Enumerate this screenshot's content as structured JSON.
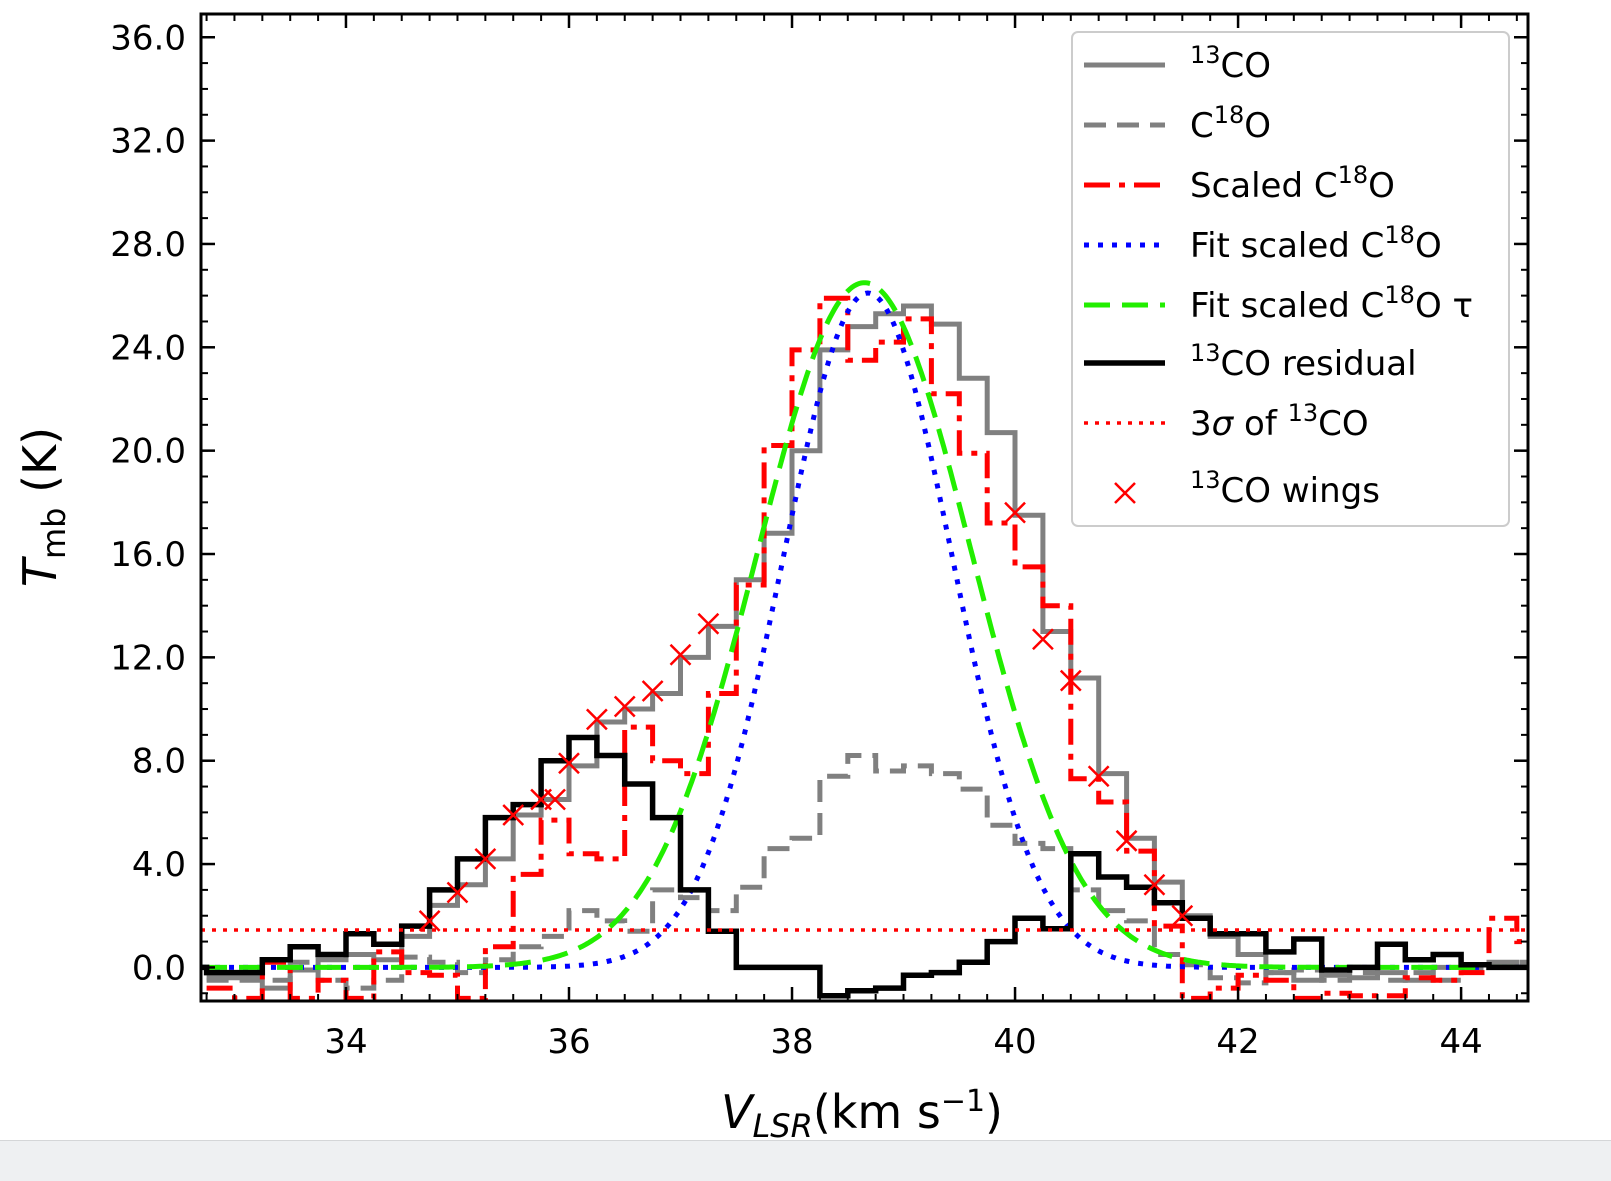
{
  "chart_data": {
    "type": "line",
    "xlabel": {
      "main": "V",
      "sub": "LSR",
      "unit": "(km s",
      "sup": "−1",
      "close": ")"
    },
    "ylabel": {
      "main": "T",
      "sub": "mb",
      "unit": " (K)"
    },
    "xlim": [
      32.7,
      44.6
    ],
    "ylim": [
      -1.3,
      36.9
    ],
    "xticks": [
      34,
      36,
      38,
      40,
      42,
      44
    ],
    "xtick_labels": [
      "34",
      "36",
      "38",
      "40",
      "42",
      "44"
    ],
    "yticks": [
      0,
      4,
      8,
      12,
      16,
      20,
      24,
      28,
      32,
      36
    ],
    "ytick_labels": [
      "0.0",
      "4.0",
      "8.0",
      "12.0",
      "16.0",
      "20.0",
      "24.0",
      "28.0",
      "32.0",
      "36.0"
    ],
    "grid": false,
    "legend_position": "top-right",
    "colors": {
      "gray": "#808080",
      "red": "#ff0000",
      "blue": "#0000ff",
      "green": "#22ee00",
      "black": "#000000"
    },
    "step_x": [
      32.75,
      33.0,
      33.25,
      33.5,
      33.75,
      34.0,
      34.25,
      34.5,
      34.75,
      35.0,
      35.25,
      35.5,
      35.75,
      36.0,
      36.25,
      36.5,
      36.75,
      37.0,
      37.25,
      37.5,
      37.75,
      38.0,
      38.25,
      38.5,
      38.75,
      39.0,
      39.25,
      39.5,
      39.75,
      40.0,
      40.25,
      40.5,
      40.75,
      41.0,
      41.25,
      41.5,
      41.75,
      42.0,
      42.25,
      42.5,
      42.75,
      43.0,
      43.25,
      43.5,
      43.75,
      44.0,
      44.25,
      44.5
    ],
    "series": [
      {
        "key": "co13",
        "name": "13CO",
        "style": "step-solid",
        "values": [
          -0.4,
          -0.4,
          -0.8,
          -0.1,
          0.3,
          0.5,
          0.3,
          1.2,
          2.4,
          3.2,
          4.2,
          5.9,
          6.5,
          7.8,
          9.5,
          10.0,
          10.6,
          12.0,
          13.2,
          15.0,
          16.8,
          20.0,
          23.9,
          24.8,
          25.3,
          25.6,
          24.9,
          22.8,
          20.7,
          17.5,
          13.0,
          11.2,
          7.5,
          5.0,
          3.3,
          2.0,
          1.2,
          0.5,
          -0.2,
          -0.5,
          -0.3,
          -0.4,
          -0.2,
          -0.5,
          0.0,
          0.1,
          0.2,
          0.0
        ]
      },
      {
        "key": "c18o",
        "name": "C18O",
        "style": "step-dash",
        "values": [
          -0.5,
          -0.5,
          -0.5,
          0.2,
          -0.5,
          -0.8,
          -0.5,
          0.4,
          0.2,
          -0.2,
          0.3,
          0.8,
          1.2,
          2.2,
          1.8,
          1.4,
          3.0,
          2.7,
          2.2,
          3.1,
          4.6,
          5.0,
          7.4,
          8.2,
          7.6,
          7.8,
          7.5,
          6.9,
          5.5,
          4.8,
          4.6,
          3.0,
          2.2,
          1.8,
          0.5,
          0.1,
          -0.4,
          -0.6,
          -0.2,
          -0.1,
          -0.5,
          -0.2,
          -0.5,
          -0.2,
          -0.5,
          -0.1,
          0.0,
          0.2
        ]
      },
      {
        "key": "scaled",
        "name": "Scaled C18O",
        "style": "step-dashdot",
        "values": [
          -0.8,
          -1.2,
          0.2,
          -1.2,
          -0.5,
          -1.2,
          0.6,
          -0.2,
          -0.3,
          -1.2,
          0.8,
          3.6,
          5.7,
          4.4,
          4.2,
          9.3,
          8.0,
          7.5,
          10.6,
          14.8,
          20.2,
          23.9,
          25.9,
          23.5,
          24.2,
          25.1,
          22.2,
          19.9,
          17.2,
          15.5,
          14.0,
          7.3,
          6.4,
          4.5,
          1.6,
          -1.2,
          -0.8,
          -0.3,
          -0.5,
          -1.2,
          -1.0,
          -1.1,
          -1.1,
          -0.4,
          -0.5,
          -0.2,
          1.9,
          1.0
        ]
      }
    ],
    "residual_x": [
      32.7,
      32.75,
      33.0,
      33.25,
      33.5,
      33.75,
      34.0,
      34.25,
      34.5,
      34.75,
      35.0,
      35.25,
      35.5,
      35.75,
      36.0,
      36.25,
      36.5,
      36.75,
      37.0,
      37.25,
      37.5,
      38.25,
      38.5,
      38.75,
      39.0,
      39.25,
      39.5,
      39.75,
      40.0,
      40.25,
      40.5,
      40.75,
      41.0,
      41.25,
      41.5,
      41.75,
      42.0,
      42.25,
      42.5,
      42.75,
      43.0,
      43.25,
      43.5,
      43.75,
      44.0,
      44.25,
      44.5
    ],
    "residual_values": [
      0.0,
      -0.2,
      -0.2,
      0.3,
      0.8,
      0.5,
      1.3,
      0.9,
      1.6,
      3.0,
      4.2,
      5.8,
      6.3,
      8.0,
      8.9,
      8.2,
      7.1,
      5.8,
      3.0,
      1.4,
      0.0,
      -1.1,
      -0.9,
      -0.8,
      -0.3,
      -0.2,
      0.2,
      1.0,
      1.9,
      1.5,
      4.4,
      3.5,
      3.1,
      2.5,
      1.9,
      1.3,
      1.3,
      0.6,
      1.1,
      -0.1,
      0.0,
      0.9,
      0.3,
      0.5,
      0.1,
      0.0,
      0.0
    ],
    "fit": {
      "key": "fit",
      "name": "Fit scaled C18O",
      "style": "dotted",
      "amplitude": 26.1,
      "center": 38.68,
      "sigma": 0.76
    },
    "fit_tau": {
      "key": "fit_tau",
      "name": "Fit scaled C18O τ",
      "style": "dashed",
      "amplitude": 26.5,
      "center": 38.65,
      "sigma": 0.9,
      "flatten": 0.0028
    },
    "threshold": {
      "key": "sigma3",
      "name": "3σ of 13CO",
      "y": 1.45
    },
    "wings": {
      "key": "wings",
      "name": "13CO wings",
      "x": [
        34.75,
        35.0,
        35.25,
        35.5,
        35.75,
        35.875,
        36.0,
        36.25,
        36.5,
        36.75,
        37.0,
        37.25,
        40.0,
        40.25,
        40.5,
        40.75,
        41.0,
        41.25,
        41.5
      ],
      "y": [
        1.8,
        2.9,
        4.2,
        5.9,
        6.5,
        6.5,
        7.9,
        9.6,
        10.1,
        10.7,
        12.1,
        13.3,
        17.6,
        12.7,
        11.1,
        7.4,
        4.9,
        3.2,
        2.0
      ]
    },
    "legend_labels": {
      "co13": {
        "sup": "13",
        "text": "CO"
      },
      "c18o": {
        "pre": "C",
        "sup": "18",
        "text": "O"
      },
      "scaled": {
        "pre": "Scaled C",
        "sup": "18",
        "text": "O"
      },
      "fit": {
        "pre": "Fit scaled C",
        "sup": "18",
        "text": "O"
      },
      "fit_tau": {
        "pre": "Fit scaled C",
        "sup": "18",
        "text": "O τ"
      },
      "residual": {
        "sup": "13",
        "text": "CO residual"
      },
      "sigma3": {
        "pre": "3",
        "italic": "σ",
        "mid": " of ",
        "sup": "13",
        "text": "CO"
      },
      "wings": {
        "sup": "13",
        "text": "CO wings"
      }
    }
  }
}
